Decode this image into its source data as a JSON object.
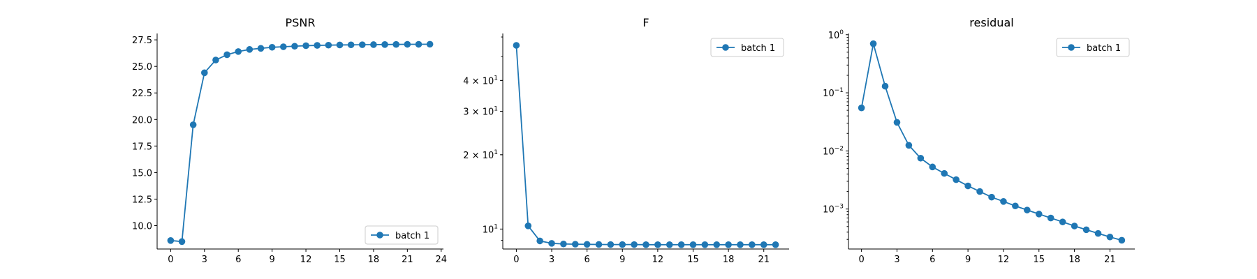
{
  "figure": {
    "background": "#ffffff",
    "series_color": "#1f77b4"
  },
  "chart_data": [
    {
      "type": "line",
      "title": "PSNR",
      "xlabel": "",
      "ylabel": "",
      "y_scale": "linear",
      "xlim": [
        -1.2,
        24.2
      ],
      "ylim": [
        7.8,
        28.1
      ],
      "x_ticks": [
        0,
        3,
        6,
        9,
        12,
        15,
        18,
        21,
        24
      ],
      "y_ticks": [
        {
          "value": 10.0,
          "label": "10.0"
        },
        {
          "value": 12.5,
          "label": "12.5"
        },
        {
          "value": 15.0,
          "label": "15.0"
        },
        {
          "value": 17.5,
          "label": "17.5"
        },
        {
          "value": 20.0,
          "label": "20.0"
        },
        {
          "value": 22.5,
          "label": "22.5"
        },
        {
          "value": 25.0,
          "label": "25.0"
        },
        {
          "value": 27.5,
          "label": "27.5"
        }
      ],
      "legend_position": "lower-right",
      "grid": false,
      "series": [
        {
          "name": "batch 1",
          "x": [
            0,
            1,
            2,
            3,
            4,
            5,
            6,
            7,
            8,
            9,
            10,
            11,
            12,
            13,
            14,
            15,
            16,
            17,
            18,
            19,
            20,
            21,
            22,
            23
          ],
          "y": [
            8.6,
            8.5,
            19.5,
            24.4,
            25.6,
            26.1,
            26.4,
            26.6,
            26.7,
            26.8,
            26.85,
            26.9,
            26.95,
            26.98,
            27.0,
            27.02,
            27.03,
            27.04,
            27.05,
            27.06,
            27.07,
            27.08,
            27.08,
            27.09
          ]
        }
      ]
    },
    {
      "type": "line",
      "title": "F",
      "xlabel": "",
      "ylabel": "",
      "y_scale": "log",
      "xlim": [
        -1.15,
        23.15
      ],
      "ylim": [
        8.3,
        62
      ],
      "x_ticks": [
        0,
        3,
        6,
        9,
        12,
        15,
        18,
        21
      ],
      "y_ticks": [
        {
          "value": 10,
          "base": "10",
          "exp": "1",
          "coef": ""
        },
        {
          "value": 20,
          "base": "10",
          "exp": "1",
          "coef": "2 × "
        },
        {
          "value": 30,
          "base": "10",
          "exp": "1",
          "coef": "3 × "
        },
        {
          "value": 40,
          "base": "10",
          "exp": "1",
          "coef": "4 × "
        }
      ],
      "legend_position": "upper-right",
      "grid": false,
      "series": [
        {
          "name": "batch 1",
          "x": [
            0,
            1,
            2,
            3,
            4,
            5,
            6,
            7,
            8,
            9,
            10,
            11,
            12,
            13,
            14,
            15,
            16,
            17,
            18,
            19,
            20,
            21,
            22
          ],
          "y": [
            55.5,
            10.3,
            8.95,
            8.75,
            8.7,
            8.68,
            8.67,
            8.66,
            8.65,
            8.65,
            8.65,
            8.64,
            8.64,
            8.64,
            8.64,
            8.64,
            8.64,
            8.64,
            8.64,
            8.64,
            8.64,
            8.64,
            8.64
          ]
        }
      ]
    },
    {
      "type": "line",
      "title": "residual",
      "xlabel": "",
      "ylabel": "",
      "y_scale": "log",
      "xlim": [
        -1.1,
        23.1
      ],
      "ylim": [
        0.000205,
        1.05
      ],
      "x_ticks": [
        0,
        3,
        6,
        9,
        12,
        15,
        18,
        21
      ],
      "y_ticks": [
        {
          "value": 0.001,
          "base": "10",
          "exp": "−3",
          "coef": ""
        },
        {
          "value": 0.01,
          "base": "10",
          "exp": "−2",
          "coef": ""
        },
        {
          "value": 0.1,
          "base": "10",
          "exp": "−1",
          "coef": ""
        },
        {
          "value": 1,
          "base": "10",
          "exp": "0",
          "coef": ""
        }
      ],
      "legend_position": "upper-right",
      "grid": false,
      "series": [
        {
          "name": "batch 1",
          "x": [
            0,
            1,
            2,
            3,
            4,
            5,
            6,
            7,
            8,
            9,
            10,
            11,
            12,
            13,
            14,
            15,
            16,
            17,
            18,
            19,
            20,
            21,
            22
          ],
          "y": [
            0.055,
            0.7,
            0.13,
            0.031,
            0.0125,
            0.0075,
            0.0053,
            0.0041,
            0.0032,
            0.0025,
            0.002,
            0.0016,
            0.00135,
            0.00113,
            0.00096,
            0.00082,
            0.0007,
            0.0006,
            0.00051,
            0.00044,
            0.00038,
            0.00033,
            0.00029
          ]
        }
      ]
    }
  ]
}
